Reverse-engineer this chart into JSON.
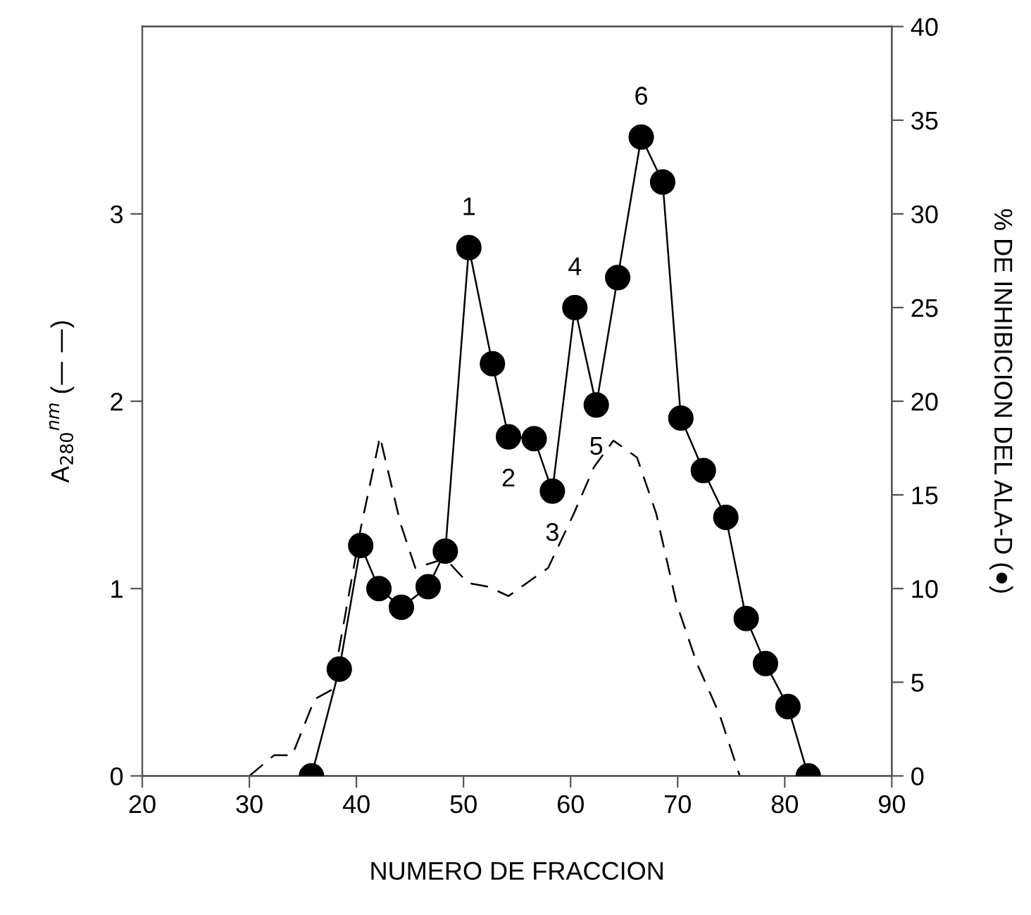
{
  "chart_data": {
    "type": "line",
    "xlabel": "NUMERO DE FRACCION",
    "ylabel": "A$_{280}$$^{nm}$ (— —)",
    "y2label": "% DE INHIBICION DEL ALA-D (●)",
    "xlim": [
      20,
      90
    ],
    "xticks": [
      20,
      30,
      40,
      50,
      60,
      70,
      80,
      90
    ],
    "ylim": [
      0,
      4
    ],
    "yticks": [
      0,
      1,
      2,
      3
    ],
    "y2lim": [
      0,
      40
    ],
    "y2ticks": [
      0,
      5,
      10,
      15,
      20,
      25,
      30,
      35,
      40
    ],
    "grid": false,
    "legend": false,
    "series": [
      {
        "color": "#000000",
        "line_style": "dashed",
        "marker": "none",
        "x": [
          30.0,
          32.3,
          34.0,
          36.1,
          37.7,
          40.4,
          42.2,
          44.1,
          45.5,
          48.3,
          50.4,
          52.3,
          54.2,
          57.9,
          60.3,
          62.2,
          64.0,
          66.2,
          68.0,
          69.9,
          71.8,
          73.9,
          75.8
        ],
        "values": [
          0,
          0.11,
          0.11,
          0.41,
          0.46,
          1.32,
          1.81,
          1.35,
          1.11,
          1.16,
          1.03,
          1.01,
          0.96,
          1.11,
          1.4,
          1.65,
          1.79,
          1.7,
          1.4,
          0.92,
          0.6,
          0.33,
          0
        ]
      },
      {
        "color": "#000000",
        "line_style": "solid",
        "marker": "circle",
        "axis": "y2",
        "x": [
          35.8,
          38.4,
          40.4,
          42.1,
          44.2,
          46.7,
          48.3,
          50.5,
          52.7,
          54.2,
          56.6,
          58.3,
          60.4,
          62.4,
          64.4,
          66.6,
          68.6,
          70.3,
          72.4,
          74.5,
          76.4,
          78.2,
          80.3,
          82.2
        ],
        "values": [
          0,
          5.7,
          12.3,
          10,
          9,
          10.1,
          12,
          28.2,
          22,
          18.1,
          18,
          15.2,
          25,
          19.8,
          26.6,
          34.1,
          31.7,
          19.1,
          16.3,
          13.8,
          8.4,
          6,
          3.7,
          0
        ]
      }
    ],
    "annotations": [
      {
        "text": "1",
        "x": 50.5,
        "y": 2.82
      },
      {
        "text": "2",
        "x": 54.2,
        "y": 1.81
      },
      {
        "text": "3",
        "x": 58.3,
        "y": 1.52
      },
      {
        "text": "4",
        "x": 60.4,
        "y": 2.5
      },
      {
        "text": "5",
        "x": 62.4,
        "y": 1.98
      },
      {
        "text": "6",
        "x": 66.6,
        "y": 3.41
      }
    ]
  }
}
